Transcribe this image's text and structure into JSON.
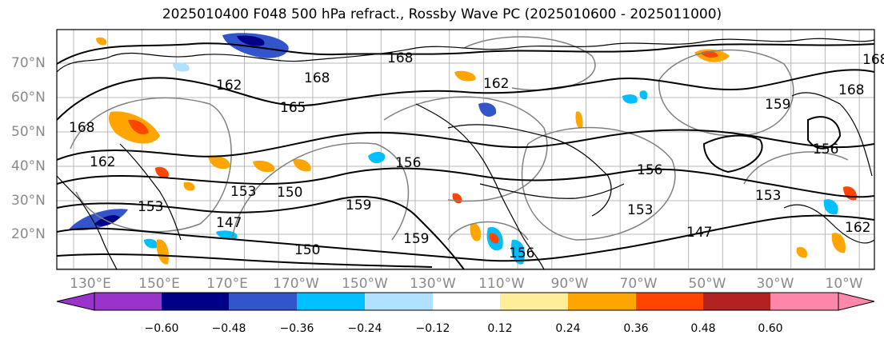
{
  "title": "2025010400 F048 500 hPa refract., Rossby Wave PC (2025010600 - 2025011000)",
  "lat_labels": [
    "70°N",
    "60°N",
    "50°N",
    "40°N",
    "30°N",
    "20°N"
  ],
  "lon_labels": [
    "130°E",
    "150°E",
    "170°E",
    "170°W",
    "150°W",
    "130°W",
    "110°W",
    "90°W",
    "70°W",
    "50°W",
    "30°W",
    "10°W"
  ],
  "contour_labels": [
    "168",
    "162",
    "168",
    "162",
    "168",
    "156",
    "153",
    "153",
    "150",
    "150",
    "156",
    "153",
    "159",
    "156",
    "162",
    "168",
    "159",
    "153",
    "147",
    "165",
    "159",
    "156",
    "168",
    "162",
    "147"
  ],
  "colorbar": {
    "colors": [
      "#9933cc",
      "#000088",
      "#3355cc",
      "#00bfff",
      "#b0e2ff",
      "#ffffff",
      "#ffee99",
      "#ffa500",
      "#ff4500",
      "#b22222",
      "#ff88aa"
    ],
    "tick_labels": [
      "−0.60",
      "−0.48",
      "−0.36",
      "−0.24",
      "−0.12",
      "0.12",
      "0.24",
      "0.36",
      "0.48",
      "0.60"
    ]
  }
}
